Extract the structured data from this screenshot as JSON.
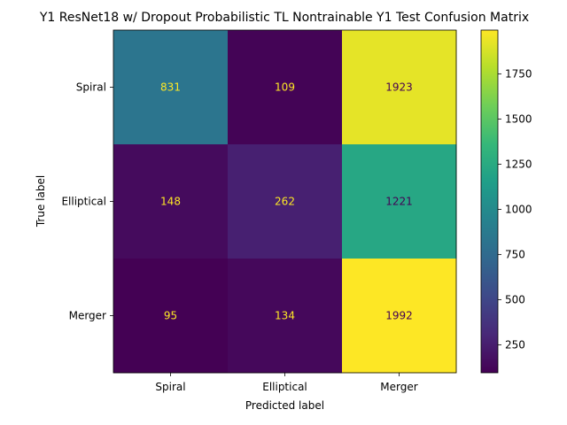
{
  "chart_data": {
    "type": "heatmap",
    "title": "Y1 ResNet18 w/ Dropout Probabilistic TL Nontrainable Y1 Test Confusion Matrix",
    "xlabel": "Predicted label",
    "ylabel": "True label",
    "x_categories": [
      "Spiral",
      "Elliptical",
      "Merger"
    ],
    "y_categories": [
      "Spiral",
      "Elliptical",
      "Merger"
    ],
    "values": [
      [
        831,
        109,
        1923
      ],
      [
        148,
        262,
        1221
      ],
      [
        95,
        134,
        1992
      ]
    ],
    "colormap": "viridis",
    "color_range": [
      95,
      1992
    ],
    "colorbar_ticks": [
      250,
      500,
      750,
      1000,
      1250,
      1500,
      1750
    ],
    "grid": false
  }
}
